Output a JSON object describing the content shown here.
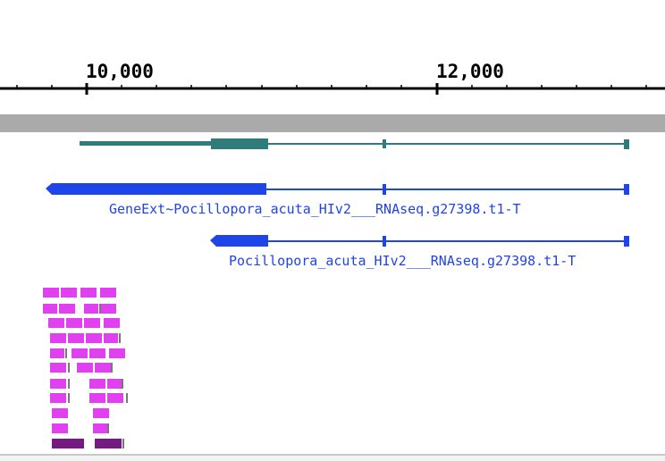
{
  "ruler": {
    "tick_labels": [
      "10,000",
      "12,000"
    ]
  },
  "tracks": {
    "genes": [
      {
        "name": "GeneExt~Pocillopora_acuta_HIv2___RNAseq.g27398.t1-T",
        "strand": "-"
      },
      {
        "name": "Pocillopora_acuta_HIv2___RNAseq.g27398.t1-T",
        "strand": "-"
      }
    ]
  },
  "colors": {
    "ruler": "#000000",
    "coverage_bar": "#aaaaaa",
    "reference_gene": "#2e7d7a",
    "gene": "#1f44e8",
    "reads": "#e040f0",
    "reads_dark": "#751a80",
    "bottom_border": "#c8c8c8"
  }
}
